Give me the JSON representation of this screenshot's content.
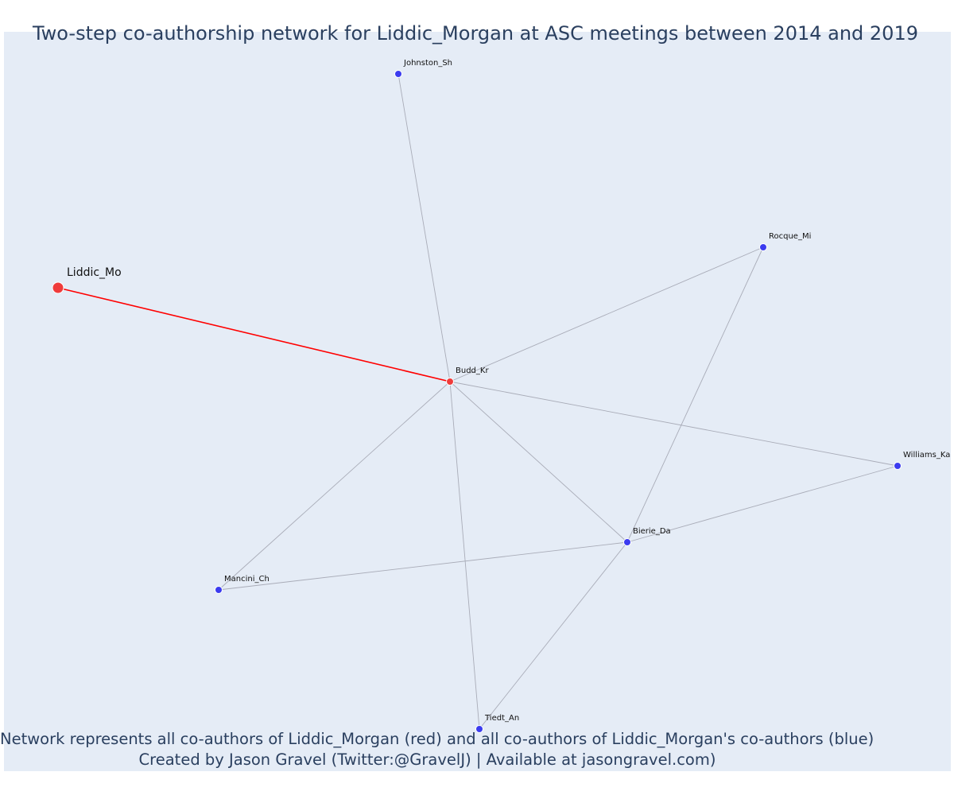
{
  "title": "Two-step co-authorship network for Liddic_Morgan at ASC meetings between 2014 and 2019",
  "caption": {
    "line1": "Network represents all co-authors of Liddic_Morgan (red) and all co-authors of Liddic_Morgan's co-authors (blue)",
    "line2": "Created by Jason Gravel (Twitter:@GravelJ) | Available at jasongravel.com)"
  },
  "colors": {
    "background": "#e5ecf6",
    "text": "#2a3f5f",
    "focal": "#ef3b3b",
    "coauthor": "#ef3b3b",
    "second_step": "#3b3bef",
    "focal_edge": "#ff0000",
    "edge": "#a9acb8"
  },
  "network": {
    "nodes": [
      {
        "id": "Liddic_Mo",
        "label": "Liddic_Mo",
        "group": "focal"
      },
      {
        "id": "Budd_Kr",
        "label": "Budd_Kr",
        "group": "coauthor"
      },
      {
        "id": "Johnston_Sh",
        "label": "Johnston_Sh",
        "group": "second_step"
      },
      {
        "id": "Rocque_Mi",
        "label": "Rocque_Mi",
        "group": "second_step"
      },
      {
        "id": "Williams_Ka",
        "label": "Williams_Ka",
        "group": "second_step"
      },
      {
        "id": "Bierie_Da",
        "label": "Bierie_Da",
        "group": "second_step"
      },
      {
        "id": "Mancini_Ch",
        "label": "Mancini_Ch",
        "group": "second_step"
      },
      {
        "id": "Tiedt_An",
        "label": "Tiedt_An",
        "group": "second_step"
      }
    ],
    "edges": [
      {
        "from": "Liddic_Mo",
        "to": "Budd_Kr",
        "focal": true
      },
      {
        "from": "Budd_Kr",
        "to": "Johnston_Sh"
      },
      {
        "from": "Budd_Kr",
        "to": "Rocque_Mi"
      },
      {
        "from": "Budd_Kr",
        "to": "Williams_Ka"
      },
      {
        "from": "Budd_Kr",
        "to": "Bierie_Da"
      },
      {
        "from": "Budd_Kr",
        "to": "Mancini_Ch"
      },
      {
        "from": "Budd_Kr",
        "to": "Tiedt_An"
      },
      {
        "from": "Bierie_Da",
        "to": "Rocque_Mi"
      },
      {
        "from": "Bierie_Da",
        "to": "Williams_Ka"
      },
      {
        "from": "Bierie_Da",
        "to": "Mancini_Ch"
      },
      {
        "from": "Bierie_Da",
        "to": "Tiedt_An"
      }
    ]
  }
}
